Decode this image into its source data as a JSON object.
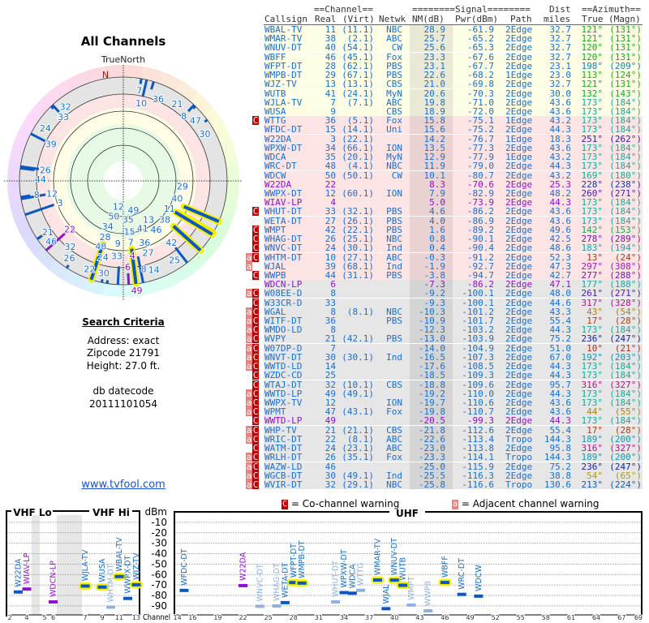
{
  "left": {
    "title": "All Channels",
    "north_label": "TrueNorth",
    "north_letter": "N",
    "criteria_heading": "Search Criteria",
    "address": "Address: exact",
    "zipcode": "Zipcode 21791",
    "height": "Height: 27.0 ft.",
    "datecode_label": "db datecode",
    "datecode": "20111101054",
    "link": "www.tvfool.com"
  },
  "table": {
    "group_channel": "==Channel==",
    "group_signal": "========Signal========",
    "group_dist": "Dist",
    "group_azimuth": "==Azimuth==",
    "col_callsign": "Callsign",
    "col_real": "Real",
    "col_virt": "(Virt)",
    "col_netwk": "Netwk",
    "col_nm": "NM(dB)",
    "col_pwr": "Pwr(dBm)",
    "col_path": "Path",
    "col_miles": "miles",
    "col_true": "True",
    "col_magn": "(Magn)",
    "rows": [
      {
        "flags": "",
        "call": "WBAL-TV",
        "real": "11",
        "virt": "(11.1)",
        "net": "NBC",
        "nm": "28.9",
        "pwr": "-61.9",
        "path": "2Edge",
        "dist": "32.7",
        "tru": "121°",
        "magn": "(131°)",
        "lp": false
      },
      {
        "flags": "",
        "call": "WMAR-TV",
        "real": "38",
        "virt": "(2.1)",
        "net": "ABC",
        "nm": "25.7",
        "pwr": "-65.2",
        "path": "2Edge",
        "dist": "32.7",
        "tru": "121°",
        "magn": "(131°)",
        "lp": false
      },
      {
        "flags": "",
        "call": "WNUV-DT",
        "real": "40",
        "virt": "(54.1)",
        "net": "CW",
        "nm": "25.6",
        "pwr": "-65.3",
        "path": "2Edge",
        "dist": "32.7",
        "tru": "120°",
        "magn": "(131°)",
        "lp": false
      },
      {
        "flags": "",
        "call": "WBFF",
        "real": "46",
        "virt": "(45.1)",
        "net": "Fox",
        "nm": "23.3",
        "pwr": "-67.6",
        "path": "2Edge",
        "dist": "32.7",
        "tru": "120°",
        "magn": "(131°)",
        "lp": false
      },
      {
        "flags": "",
        "call": "WFPT-DT",
        "real": "28",
        "virt": "(62.1)",
        "net": "PBS",
        "nm": "23.1",
        "pwr": "-67.7",
        "path": "2Edge",
        "dist": "23.1",
        "tru": "198°",
        "magn": "(209°)",
        "lp": false
      },
      {
        "flags": "",
        "call": "WMPB-DT",
        "real": "29",
        "virt": "(67.1)",
        "net": "PBS",
        "nm": "22.6",
        "pwr": "-68.2",
        "path": "1Edge",
        "dist": "23.0",
        "tru": "113°",
        "magn": "(124°)",
        "lp": false
      },
      {
        "flags": "",
        "call": "WJZ-TV",
        "real": "13",
        "virt": "(13.1)",
        "net": "CBS",
        "nm": "21.0",
        "pwr": "-69.8",
        "path": "2Edge",
        "dist": "32.7",
        "tru": "121°",
        "magn": "(131°)",
        "lp": false
      },
      {
        "flags": "",
        "call": "WUTB",
        "real": "41",
        "virt": "(24.1)",
        "net": "MyN",
        "nm": "20.6",
        "pwr": "-70.3",
        "path": "2Edge",
        "dist": "30.0",
        "tru": "132°",
        "magn": "(143°)",
        "lp": false
      },
      {
        "flags": "",
        "call": "WJLA-TV",
        "real": "7",
        "virt": "(7.1)",
        "net": "ABC",
        "nm": "19.8",
        "pwr": "-71.0",
        "path": "2Edge",
        "dist": "43.6",
        "tru": "173°",
        "magn": "(184°)",
        "lp": false
      },
      {
        "flags": "",
        "call": "WUSA",
        "real": "9",
        "virt": "",
        "net": "CBS",
        "nm": "18.9",
        "pwr": "-72.0",
        "path": "2Edge",
        "dist": "43.6",
        "tru": "173°",
        "magn": "(184°)",
        "lp": false
      },
      {
        "flags": "C",
        "call": "WTTG",
        "real": "36",
        "virt": "(5.1)",
        "net": "Fox",
        "nm": "15.8",
        "pwr": "-75.1",
        "path": "1Edge",
        "dist": "43.2",
        "tru": "173°",
        "magn": "(184°)",
        "lp": false
      },
      {
        "flags": "",
        "call": "WFDC-DT",
        "real": "15",
        "virt": "(14.1)",
        "net": "Uni",
        "nm": "15.6",
        "pwr": "-75.2",
        "path": "2Edge",
        "dist": "44.3",
        "tru": "173°",
        "magn": "(184°)",
        "lp": false
      },
      {
        "flags": "",
        "call": "W22DA",
        "real": "3",
        "virt": "(22.1)",
        "net": "",
        "nm": "14.2",
        "pwr": "-76.7",
        "path": "1Edge",
        "dist": "18.3",
        "tru": "251°",
        "magn": "(262°)",
        "lp": false
      },
      {
        "flags": "",
        "call": "WPXW-DT",
        "real": "34",
        "virt": "(66.1)",
        "net": "ION",
        "nm": "13.5",
        "pwr": "-77.3",
        "path": "2Edge",
        "dist": "43.6",
        "tru": "173°",
        "magn": "(184°)",
        "lp": false
      },
      {
        "flags": "",
        "call": "WDCA",
        "real": "35",
        "virt": "(20.1)",
        "net": "MyN",
        "nm": "12.9",
        "pwr": "-77.9",
        "path": "1Edge",
        "dist": "43.2",
        "tru": "173°",
        "magn": "(184°)",
        "lp": false
      },
      {
        "flags": "",
        "call": "WRC-DT",
        "real": "48",
        "virt": "(4.1)",
        "net": "NBC",
        "nm": "11.9",
        "pwr": "-79.0",
        "path": "2Edge",
        "dist": "44.3",
        "tru": "173°",
        "magn": "(184°)",
        "lp": false
      },
      {
        "flags": "",
        "call": "WDCW",
        "real": "50",
        "virt": "(50.1)",
        "net": "CW",
        "nm": "10.1",
        "pwr": "-80.7",
        "path": "2Edge",
        "dist": "43.2",
        "tru": "169°",
        "magn": "(180°)",
        "lp": false
      },
      {
        "flags": "",
        "call": "W22DA",
        "real": "22",
        "virt": "",
        "net": "",
        "nm": "8.3",
        "pwr": "-70.6",
        "path": "2Edge",
        "dist": "25.3",
        "tru": "228°",
        "magn": "(238°)",
        "lp": true
      },
      {
        "flags": "",
        "call": "WWPX-DT",
        "real": "12",
        "virt": "(60.1)",
        "net": "ION",
        "nm": "7.9",
        "pwr": "-82.9",
        "path": "2Edge",
        "dist": "48.2",
        "tru": "260°",
        "magn": "(271°)",
        "lp": false
      },
      {
        "flags": "",
        "call": "WIAV-LP",
        "real": "4",
        "virt": "",
        "net": "",
        "nm": "5.0",
        "pwr": "-73.9",
        "path": "2Edge",
        "dist": "44.3",
        "tru": "173°",
        "magn": "(184°)",
        "lp": true
      },
      {
        "flags": "C",
        "call": "WHUT-DT",
        "real": "33",
        "virt": "(32.1)",
        "net": "PBS",
        "nm": "4.6",
        "pwr": "-86.2",
        "path": "2Edge",
        "dist": "43.6",
        "tru": "173°",
        "magn": "(184°)",
        "lp": false
      },
      {
        "flags": "",
        "call": "WETA-DT",
        "real": "27",
        "virt": "(26.1)",
        "net": "PBS",
        "nm": "4.0",
        "pwr": "-86.9",
        "path": "2Edge",
        "dist": "43.6",
        "tru": "173°",
        "magn": "(184°)",
        "lp": false
      },
      {
        "flags": "C",
        "call": "WMPT",
        "real": "42",
        "virt": "(22.1)",
        "net": "PBS",
        "nm": "1.6",
        "pwr": "-89.2",
        "path": "2Edge",
        "dist": "49.6",
        "tru": "142°",
        "magn": "(153°)",
        "lp": false
      },
      {
        "flags": "C",
        "call": "WHAG-DT",
        "real": "26",
        "virt": "(25.1)",
        "net": "NBC",
        "nm": "0.8",
        "pwr": "-90.1",
        "path": "2Edge",
        "dist": "42.5",
        "tru": "278°",
        "magn": "(289°)",
        "lp": false
      },
      {
        "flags": "C",
        "call": "WNVC-DT",
        "real": "24",
        "virt": "(30.1)",
        "net": "Ind",
        "nm": "0.4",
        "pwr": "-90.4",
        "path": "2Edge",
        "dist": "48.6",
        "tru": "183°",
        "magn": "(194°)",
        "lp": false
      },
      {
        "flags": "aC",
        "call": "WHTM-DT",
        "real": "10",
        "virt": "(27.1)",
        "net": "ABC",
        "nm": "-0.3",
        "pwr": "-91.2",
        "path": "2Edge",
        "dist": "52.3",
        "tru": "13°",
        "magn": "(24°)",
        "lp": false
      },
      {
        "flags": "a",
        "call": "WJAL",
        "real": "39",
        "virt": "(68.1)",
        "net": "Ind",
        "nm": "-1.9",
        "pwr": "-92.7",
        "path": "2Edge",
        "dist": "47.3",
        "tru": "297°",
        "magn": "(308°)",
        "lp": false
      },
      {
        "flags": "C",
        "call": "WWPB",
        "real": "44",
        "virt": "(31.1)",
        "net": "PBS",
        "nm": "-3.8",
        "pwr": "-94.7",
        "path": "2Edge",
        "dist": "42.7",
        "tru": "277°",
        "magn": "(288°)",
        "lp": false
      },
      {
        "flags": "",
        "call": "WDCN-LP",
        "real": "6",
        "virt": "",
        "net": "",
        "nm": "-7.3",
        "pwr": "-86.2",
        "path": "2Edge",
        "dist": "47.1",
        "tru": "177°",
        "magn": "(188°)",
        "lp": true
      },
      {
        "flags": "aC",
        "call": "W08EE-D",
        "real": "8",
        "virt": "",
        "net": "",
        "nm": "-9.2",
        "pwr": "-100.1",
        "path": "2Edge",
        "dist": "48.0",
        "tru": "261°",
        "magn": "(271°)",
        "lp": false
      },
      {
        "flags": "C",
        "call": "W33CR-D",
        "real": "33",
        "virt": "",
        "net": "",
        "nm": "-9.3",
        "pwr": "-100.1",
        "path": "2Edge",
        "dist": "44.6",
        "tru": "317°",
        "magn": "(328°)",
        "lp": false
      },
      {
        "flags": "aC",
        "call": "WGAL",
        "real": "8",
        "virt": "(8.1)",
        "net": "NBC",
        "nm": "-10.3",
        "pwr": "-101.2",
        "path": "2Edge",
        "dist": "43.3",
        "tru": "43°",
        "magn": "(54°)",
        "lp": false
      },
      {
        "flags": "aC",
        "call": "WITF-DT",
        "real": "36",
        "virt": "",
        "net": "PBS",
        "nm": "-10.9",
        "pwr": "-101.7",
        "path": "2Edge",
        "dist": "55.4",
        "tru": "17°",
        "magn": "(28°)",
        "lp": false
      },
      {
        "flags": "aC",
        "call": "WMDO-LD",
        "real": "8",
        "virt": "",
        "net": "",
        "nm": "-12.3",
        "pwr": "-103.2",
        "path": "2Edge",
        "dist": "44.3",
        "tru": "173°",
        "magn": "(184°)",
        "lp": false
      },
      {
        "flags": "aC",
        "call": "WVPY",
        "real": "21",
        "virt": "(42.1)",
        "net": "PBS",
        "nm": "-13.0",
        "pwr": "-103.9",
        "path": "2Edge",
        "dist": "75.2",
        "tru": "236°",
        "magn": "(247°)",
        "lp": false
      },
      {
        "flags": "aC",
        "call": "W07DP-D",
        "real": "7",
        "virt": "",
        "net": "",
        "nm": "-14.0",
        "pwr": "-104.9",
        "path": "2Edge",
        "dist": "51.0",
        "tru": "10°",
        "magn": "(21°)",
        "lp": false
      },
      {
        "flags": "aC",
        "call": "WNVT-DT",
        "real": "30",
        "virt": "(30.1)",
        "net": "Ind",
        "nm": "-16.5",
        "pwr": "-107.3",
        "path": "2Edge",
        "dist": "67.0",
        "tru": "192°",
        "magn": "(203°)",
        "lp": false
      },
      {
        "flags": "aC",
        "call": "WWTD-LD",
        "real": "14",
        "virt": "",
        "net": "",
        "nm": "-17.6",
        "pwr": "-108.5",
        "path": "2Edge",
        "dist": "44.3",
        "tru": "173°",
        "magn": "(184°)",
        "lp": false
      },
      {
        "flags": "C",
        "call": "WZDC-CD",
        "real": "25",
        "virt": "",
        "net": "",
        "nm": "-18.5",
        "pwr": "-109.3",
        "path": "2Edge",
        "dist": "44.3",
        "tru": "173°",
        "magn": "(184°)",
        "lp": false
      },
      {
        "flags": "C",
        "call": "WTAJ-DT",
        "real": "32",
        "virt": "(10.1)",
        "net": "CBS",
        "nm": "-18.8",
        "pwr": "-109.6",
        "path": "2Edge",
        "dist": "95.7",
        "tru": "316°",
        "magn": "(327°)",
        "lp": false
      },
      {
        "flags": "aC",
        "call": "WWTD-LP",
        "real": "49",
        "virt": "(49.1)",
        "net": "",
        "nm": "-19.2",
        "pwr": "-110.0",
        "path": "2Edge",
        "dist": "44.3",
        "tru": "173°",
        "magn": "(184°)",
        "lp": false
      },
      {
        "flags": "aC",
        "call": "WWPX-TV",
        "real": "12",
        "virt": "",
        "net": "ION",
        "nm": "-19.7",
        "pwr": "-110.6",
        "path": "2Edge",
        "dist": "43.6",
        "tru": "173°",
        "magn": "(184°)",
        "lp": false
      },
      {
        "flags": "aC",
        "call": "WPMT",
        "real": "47",
        "virt": "(43.1)",
        "net": "Fox",
        "nm": "-19.8",
        "pwr": "-110.7",
        "path": "2Edge",
        "dist": "43.6",
        "tru": "44°",
        "magn": "(55°)",
        "lp": false
      },
      {
        "flags": "C",
        "call": "WWTD-LP",
        "real": "49",
        "virt": "",
        "net": "",
        "nm": "-20.5",
        "pwr": "-99.3",
        "path": "2Edge",
        "dist": "44.3",
        "tru": "173°",
        "magn": "(184°)",
        "lp": true
      },
      {
        "flags": "aC",
        "call": "WHP-TV",
        "real": "21",
        "virt": "(21.1)",
        "net": "CBS",
        "nm": "-21.8",
        "pwr": "-112.6",
        "path": "2Edge",
        "dist": "55.4",
        "tru": "17°",
        "magn": "(28°)",
        "lp": false
      },
      {
        "flags": "aC",
        "call": "WRIC-DT",
        "real": "22",
        "virt": "(8.1)",
        "net": "ABC",
        "nm": "-22.6",
        "pwr": "-113.4",
        "path": "Tropo",
        "dist": "144.3",
        "tru": "189°",
        "magn": "(200°)",
        "lp": false
      },
      {
        "flags": "C",
        "call": "WATM-DT",
        "real": "24",
        "virt": "(23.1)",
        "net": "ABC",
        "nm": "-23.0",
        "pwr": "-113.8",
        "path": "2Edge",
        "dist": "95.8",
        "tru": "316°",
        "magn": "(327°)",
        "lp": false
      },
      {
        "flags": "aC",
        "call": "WRLH-DT",
        "real": "26",
        "virt": "(35.1)",
        "net": "Fox",
        "nm": "-23.3",
        "pwr": "-114.1",
        "path": "Tropo",
        "dist": "144.3",
        "tru": "189°",
        "magn": "(200°)",
        "lp": false
      },
      {
        "flags": "aC",
        "call": "WAZW-LD",
        "real": "46",
        "virt": "",
        "net": "",
        "nm": "-25.0",
        "pwr": "-115.9",
        "path": "2Edge",
        "dist": "75.2",
        "tru": "236°",
        "magn": "(247°)",
        "lp": false
      },
      {
        "flags": "aC",
        "call": "WGCB-DT",
        "real": "30",
        "virt": "(49.1)",
        "net": "Ind",
        "nm": "-25.5",
        "pwr": "-116.3",
        "path": "2Edge",
        "dist": "38.8",
        "tru": "54°",
        "magn": "(65°)",
        "lp": false
      },
      {
        "flags": "aC",
        "call": "WVIR-DT",
        "real": "32",
        "virt": "(29.1)",
        "net": "NBC",
        "nm": "-25.8",
        "pwr": "-116.6",
        "path": "Tropo",
        "dist": "130.6",
        "tru": "213°",
        "magn": "(224°)",
        "lp": false
      }
    ]
  },
  "legend": {
    "co_glyph": "C",
    "co_text": "= Co-channel warning",
    "adj_glyph": "a",
    "adj_text": "= Adjacent channel warning"
  },
  "spectrum": {
    "vhf_lo": "VHF Lo",
    "vhf_hi": "VHF Hi",
    "uhf": "UHF",
    "unit": "dBm",
    "channel_label": "Channel",
    "dbm_ticks": [
      "-10",
      "-20",
      "-30",
      "-40",
      "-50",
      "-60",
      "-70",
      "-80",
      "-90"
    ],
    "vhf_channel_ticks": [
      "2",
      "4",
      "5",
      "6",
      "7",
      "9",
      "11",
      "13"
    ],
    "uhf_channel_ticks": [
      "14",
      "16",
      "19",
      "22",
      "25",
      "28",
      "31",
      "34",
      "37",
      "40",
      "43",
      "46",
      "49",
      "52",
      "55",
      "58",
      "61",
      "64",
      "67",
      "69"
    ]
  },
  "colors": {
    "text_blue": "#1a6fd0",
    "lp_purple": "#9010d0",
    "bar_dark": "#0a58c0",
    "bar_light": "#8fb0e0",
    "halo": "#f5f000",
    "row_yellow": "#fdfde6",
    "row_pink": "#fde4e4",
    "row_gray": "#e6e6e6"
  }
}
